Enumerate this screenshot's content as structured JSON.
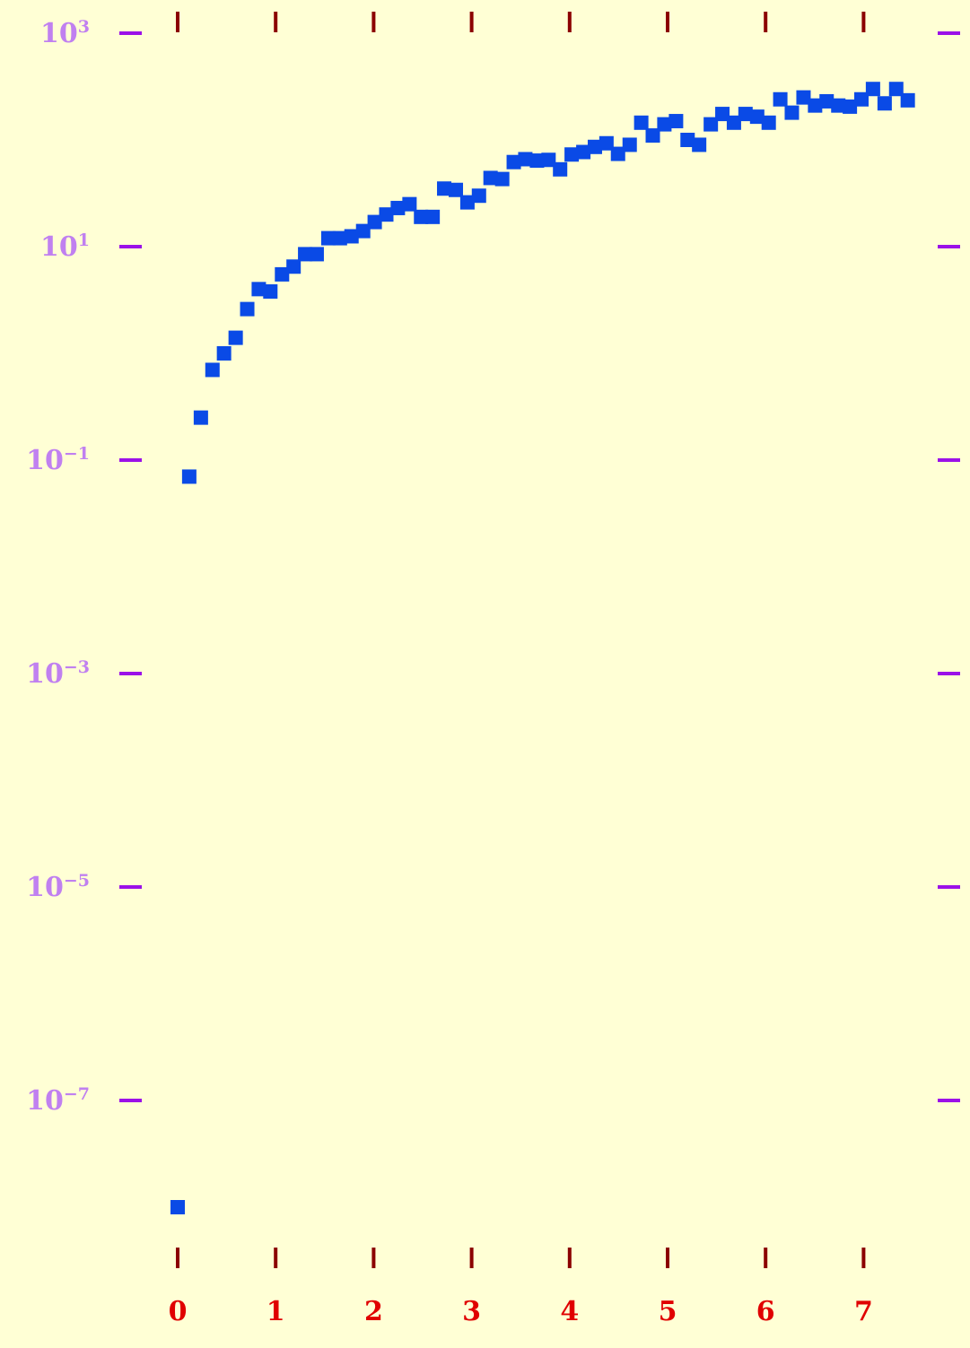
{
  "chart_data": {
    "type": "scatter",
    "title": "",
    "xlabel": "",
    "ylabel": "",
    "x_ticks": [
      "0",
      "1",
      "2",
      "3",
      "4",
      "5",
      "6",
      "7"
    ],
    "y_ticks": [
      {
        "base": "10",
        "exp": "3",
        "value": 1000
      },
      {
        "base": "10",
        "exp": "1",
        "value": 10
      },
      {
        "base": "10",
        "exp": "−1",
        "value": 0.1
      },
      {
        "base": "10",
        "exp": "−3",
        "value": 0.001
      },
      {
        "base": "10",
        "exp": "−5",
        "value": 1e-05
      },
      {
        "base": "10",
        "exp": "−7",
        "value": 1e-07
      }
    ],
    "y_scale": "log",
    "ylim": [
      1e-09,
      1000
    ],
    "xlim": [
      -0.3,
      7.6
    ],
    "grid": false,
    "colors": {
      "background": "#ffffd5",
      "points": "#0a4ae6",
      "x_tick_marks": "#8b0000",
      "x_tick_labels": "#e00000",
      "y_tick_marks": "#9b10e8",
      "y_tick_labels": "#c080f0"
    },
    "series": [
      {
        "x": [
          0,
          0.118,
          0.237,
          0.355,
          0.473,
          0.592,
          0.71,
          0.828,
          0.946,
          1.065,
          1.183,
          1.301,
          1.419,
          1.538,
          1.656,
          1.774,
          1.893,
          2.011,
          2.129,
          2.247,
          2.366,
          2.484,
          2.602,
          2.72,
          2.839,
          2.957,
          3.075,
          3.193,
          3.312,
          3.43,
          3.548,
          3.667,
          3.785,
          3.903,
          4.021,
          4.14,
          4.258,
          4.376,
          4.494,
          4.613,
          4.731,
          4.849,
          4.967,
          5.086,
          5.204,
          5.322,
          5.441,
          5.559,
          5.677,
          5.795,
          5.914,
          6.032,
          6.15,
          6.268,
          6.387,
          6.505,
          6.623,
          6.742,
          6.86,
          6.978,
          7.096,
          7.215,
          7.333,
          7.451
        ],
        "y": [
          1e-08,
          0.07,
          0.25,
          0.7,
          1.0,
          1.4,
          2.6,
          4.0,
          3.8,
          5.5,
          6.5,
          8.5,
          8.5,
          12,
          12,
          12.5,
          14,
          17,
          20,
          23,
          25,
          19,
          19,
          35,
          34,
          26,
          30,
          44,
          43,
          62,
          66,
          64,
          65,
          53,
          73,
          77,
          86,
          93,
          74,
          90,
          145,
          110,
          140,
          150,
          100,
          90,
          140,
          175,
          145,
          175,
          165,
          145,
          240,
          180,
          250,
          210,
          230,
          210,
          205,
          240,
          300,
          220,
          300,
          235
        ]
      }
    ]
  }
}
